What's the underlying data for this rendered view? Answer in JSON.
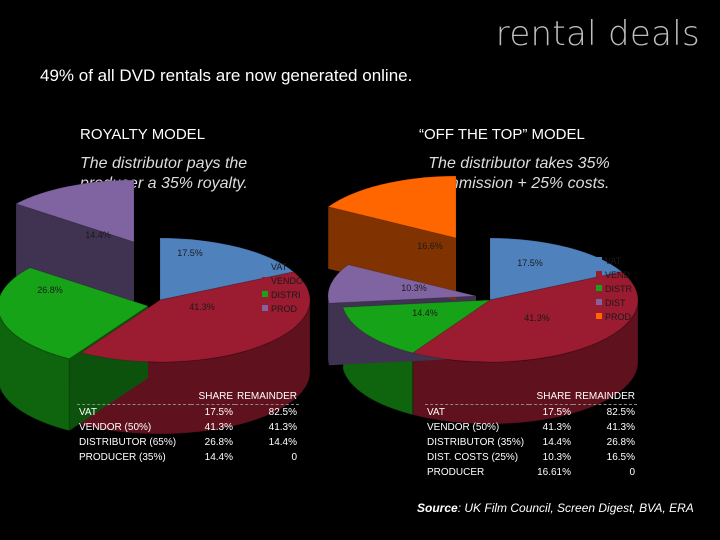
{
  "header": {
    "title": "rental deals",
    "subtitle": "49% of all DVD rentals are now generated online."
  },
  "royalty": {
    "heading": "ROYALTY MODEL",
    "desc_line1": "The distributor pays the",
    "desc_line2": "producer a 35% royalty.",
    "table": {
      "headers": [
        "SHARE",
        "REMAINDER"
      ],
      "rows": [
        {
          "label": "VAT",
          "share": "17.5%",
          "remainder": "82.5%"
        },
        {
          "label": "VENDOR (50%)",
          "share": "41.3%",
          "remainder": "41.3%"
        },
        {
          "label": "DISTRIBUTOR (65%)",
          "share": "26.8%",
          "remainder": "14.4%"
        },
        {
          "label": "PRODUCER (35%)",
          "share": "14.4%",
          "remainder": "0"
        }
      ]
    }
  },
  "ott": {
    "heading": "“OFF THE TOP” MODEL",
    "desc_line1": "The distributor takes 35%",
    "desc_line2": "commission + 25% costs.",
    "table": {
      "headers": [
        "SHARE",
        "REMAINDER"
      ],
      "rows": [
        {
          "label": "VAT",
          "share": "17.5%",
          "remainder": "82.5%"
        },
        {
          "label": "VENDOR (50%)",
          "share": "41.3%",
          "remainder": "41.3%"
        },
        {
          "label": "DISTRIBUTOR (35%)",
          "share": "14.4%",
          "remainder": "26.8%"
        },
        {
          "label": "DIST. COSTS (25%)",
          "share": "10.3%",
          "remainder": "16.5%"
        },
        {
          "label": "PRODUCER",
          "share": "16.61%",
          "remainder": "0"
        }
      ]
    }
  },
  "source": {
    "label": "Source",
    "text": ": UK Film Council, Screen Digest, BVA, ERA"
  },
  "chart_data": [
    {
      "type": "pie",
      "title": "ROYALTY MODEL",
      "slices": [
        {
          "label": "VAT",
          "value": 17.5,
          "label_text": "17.5%",
          "color": "#4f81bd"
        },
        {
          "label": "VENDOR",
          "value": 41.3,
          "label_text": "41.3%",
          "color": "#9b1b30"
        },
        {
          "label": "DISTRIBUTOR",
          "value": 26.8,
          "label_text": "26.8%",
          "color": "#17a317"
        },
        {
          "label": "PRODUCER",
          "value": 14.4,
          "label_text": "14.4%",
          "color": "#8064a2"
        }
      ],
      "legend_labels": [
        "VAT",
        "VENDO",
        "DISTRI",
        "PROD"
      ],
      "legend_placement": "right"
    },
    {
      "type": "pie",
      "title": "“OFF THE TOP” MODEL",
      "slices": [
        {
          "label": "VAT",
          "value": 17.5,
          "label_text": "17.5%",
          "color": "#4f81bd"
        },
        {
          "label": "VENDOR",
          "value": 41.3,
          "label_text": "41.3%",
          "color": "#9b1b30"
        },
        {
          "label": "DISTRIBUTOR",
          "value": 14.4,
          "label_text": "14.4%",
          "color": "#17a317"
        },
        {
          "label": "DIST. COSTS",
          "value": 10.3,
          "label_text": "10.3%",
          "color": "#8064a2"
        },
        {
          "label": "PRODUCER",
          "value": 16.6,
          "label_text": "16.6%",
          "color": "#ff6600"
        }
      ],
      "legend_labels": [
        "VAT",
        "VEND",
        "DISTR",
        "DIST",
        "PROD"
      ],
      "legend_placement": "right"
    }
  ]
}
